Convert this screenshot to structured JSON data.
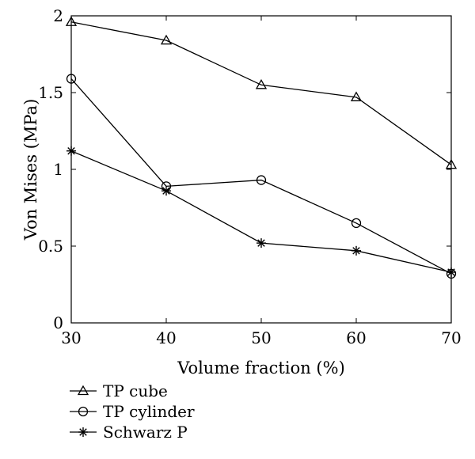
{
  "chart_data": {
    "type": "line",
    "xlabel": "Volume fraction (%)",
    "ylabel": "Von Mises (MPa)",
    "xlim": [
      30,
      70
    ],
    "ylim": [
      0,
      2
    ],
    "x_ticks": [
      30,
      40,
      50,
      60,
      70
    ],
    "y_ticks": [
      0,
      0.5,
      1,
      1.5,
      2
    ],
    "x_tick_labels": [
      "30",
      "40",
      "50",
      "60",
      "70"
    ],
    "y_tick_labels": [
      "0",
      "0.5",
      "1",
      "1.5",
      "2"
    ],
    "x": [
      30,
      40,
      50,
      60,
      70
    ],
    "grid": false,
    "legend_position": "below",
    "series": [
      {
        "name": "TP cube",
        "marker": "triangle",
        "values": [
          1.96,
          1.84,
          1.55,
          1.47,
          1.03
        ]
      },
      {
        "name": "TP cylinder",
        "marker": "circle",
        "values": [
          1.59,
          0.89,
          0.93,
          0.65,
          0.32
        ]
      },
      {
        "name": "Schwarz P",
        "marker": "star",
        "values": [
          1.12,
          0.86,
          0.52,
          0.47,
          0.33
        ]
      }
    ]
  }
}
